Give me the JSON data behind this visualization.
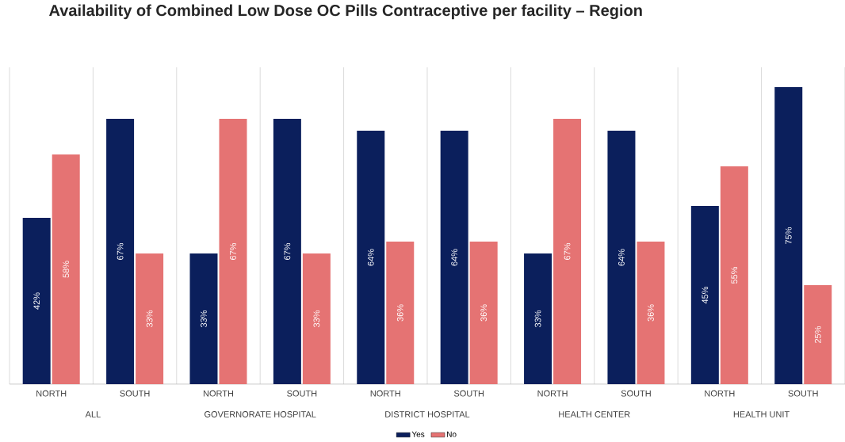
{
  "chart_data": {
    "type": "bar",
    "title": "Availability of Combined Low Dose OC Pills Contraceptive per facility – Region",
    "categories": [
      "NORTH",
      "SOUTH",
      "NORTH",
      "SOUTH",
      "NORTH",
      "SOUTH",
      "NORTH",
      "SOUTH",
      "NORTH",
      "SOUTH"
    ],
    "series": [
      {
        "name": "Yes",
        "color": "#0b1f5c",
        "values": [
          42,
          67,
          33,
          67,
          64,
          64,
          33,
          64,
          45,
          75
        ],
        "value_labels": [
          "42%",
          "67%",
          "33%",
          "67%",
          "64%",
          "64%",
          "33%",
          "64%",
          "45%",
          "75%"
        ]
      },
      {
        "name": "No",
        "color": "#e57373",
        "values": [
          58,
          33,
          67,
          33,
          36,
          36,
          67,
          36,
          55,
          25
        ],
        "value_labels": [
          "58%",
          "33%",
          "67%",
          "33%",
          "36%",
          "36%",
          "67%",
          "36%",
          "55%",
          "25%"
        ]
      }
    ],
    "annotations": [
      "ALL",
      "GOVERNORATE HOSPITAL",
      "DISTRICT HOSPITAL",
      "HEALTH CENTER",
      "HEALTH UNIT"
    ],
    "ylim": [
      0,
      80
    ],
    "grid": "x",
    "legend": "bottom"
  }
}
